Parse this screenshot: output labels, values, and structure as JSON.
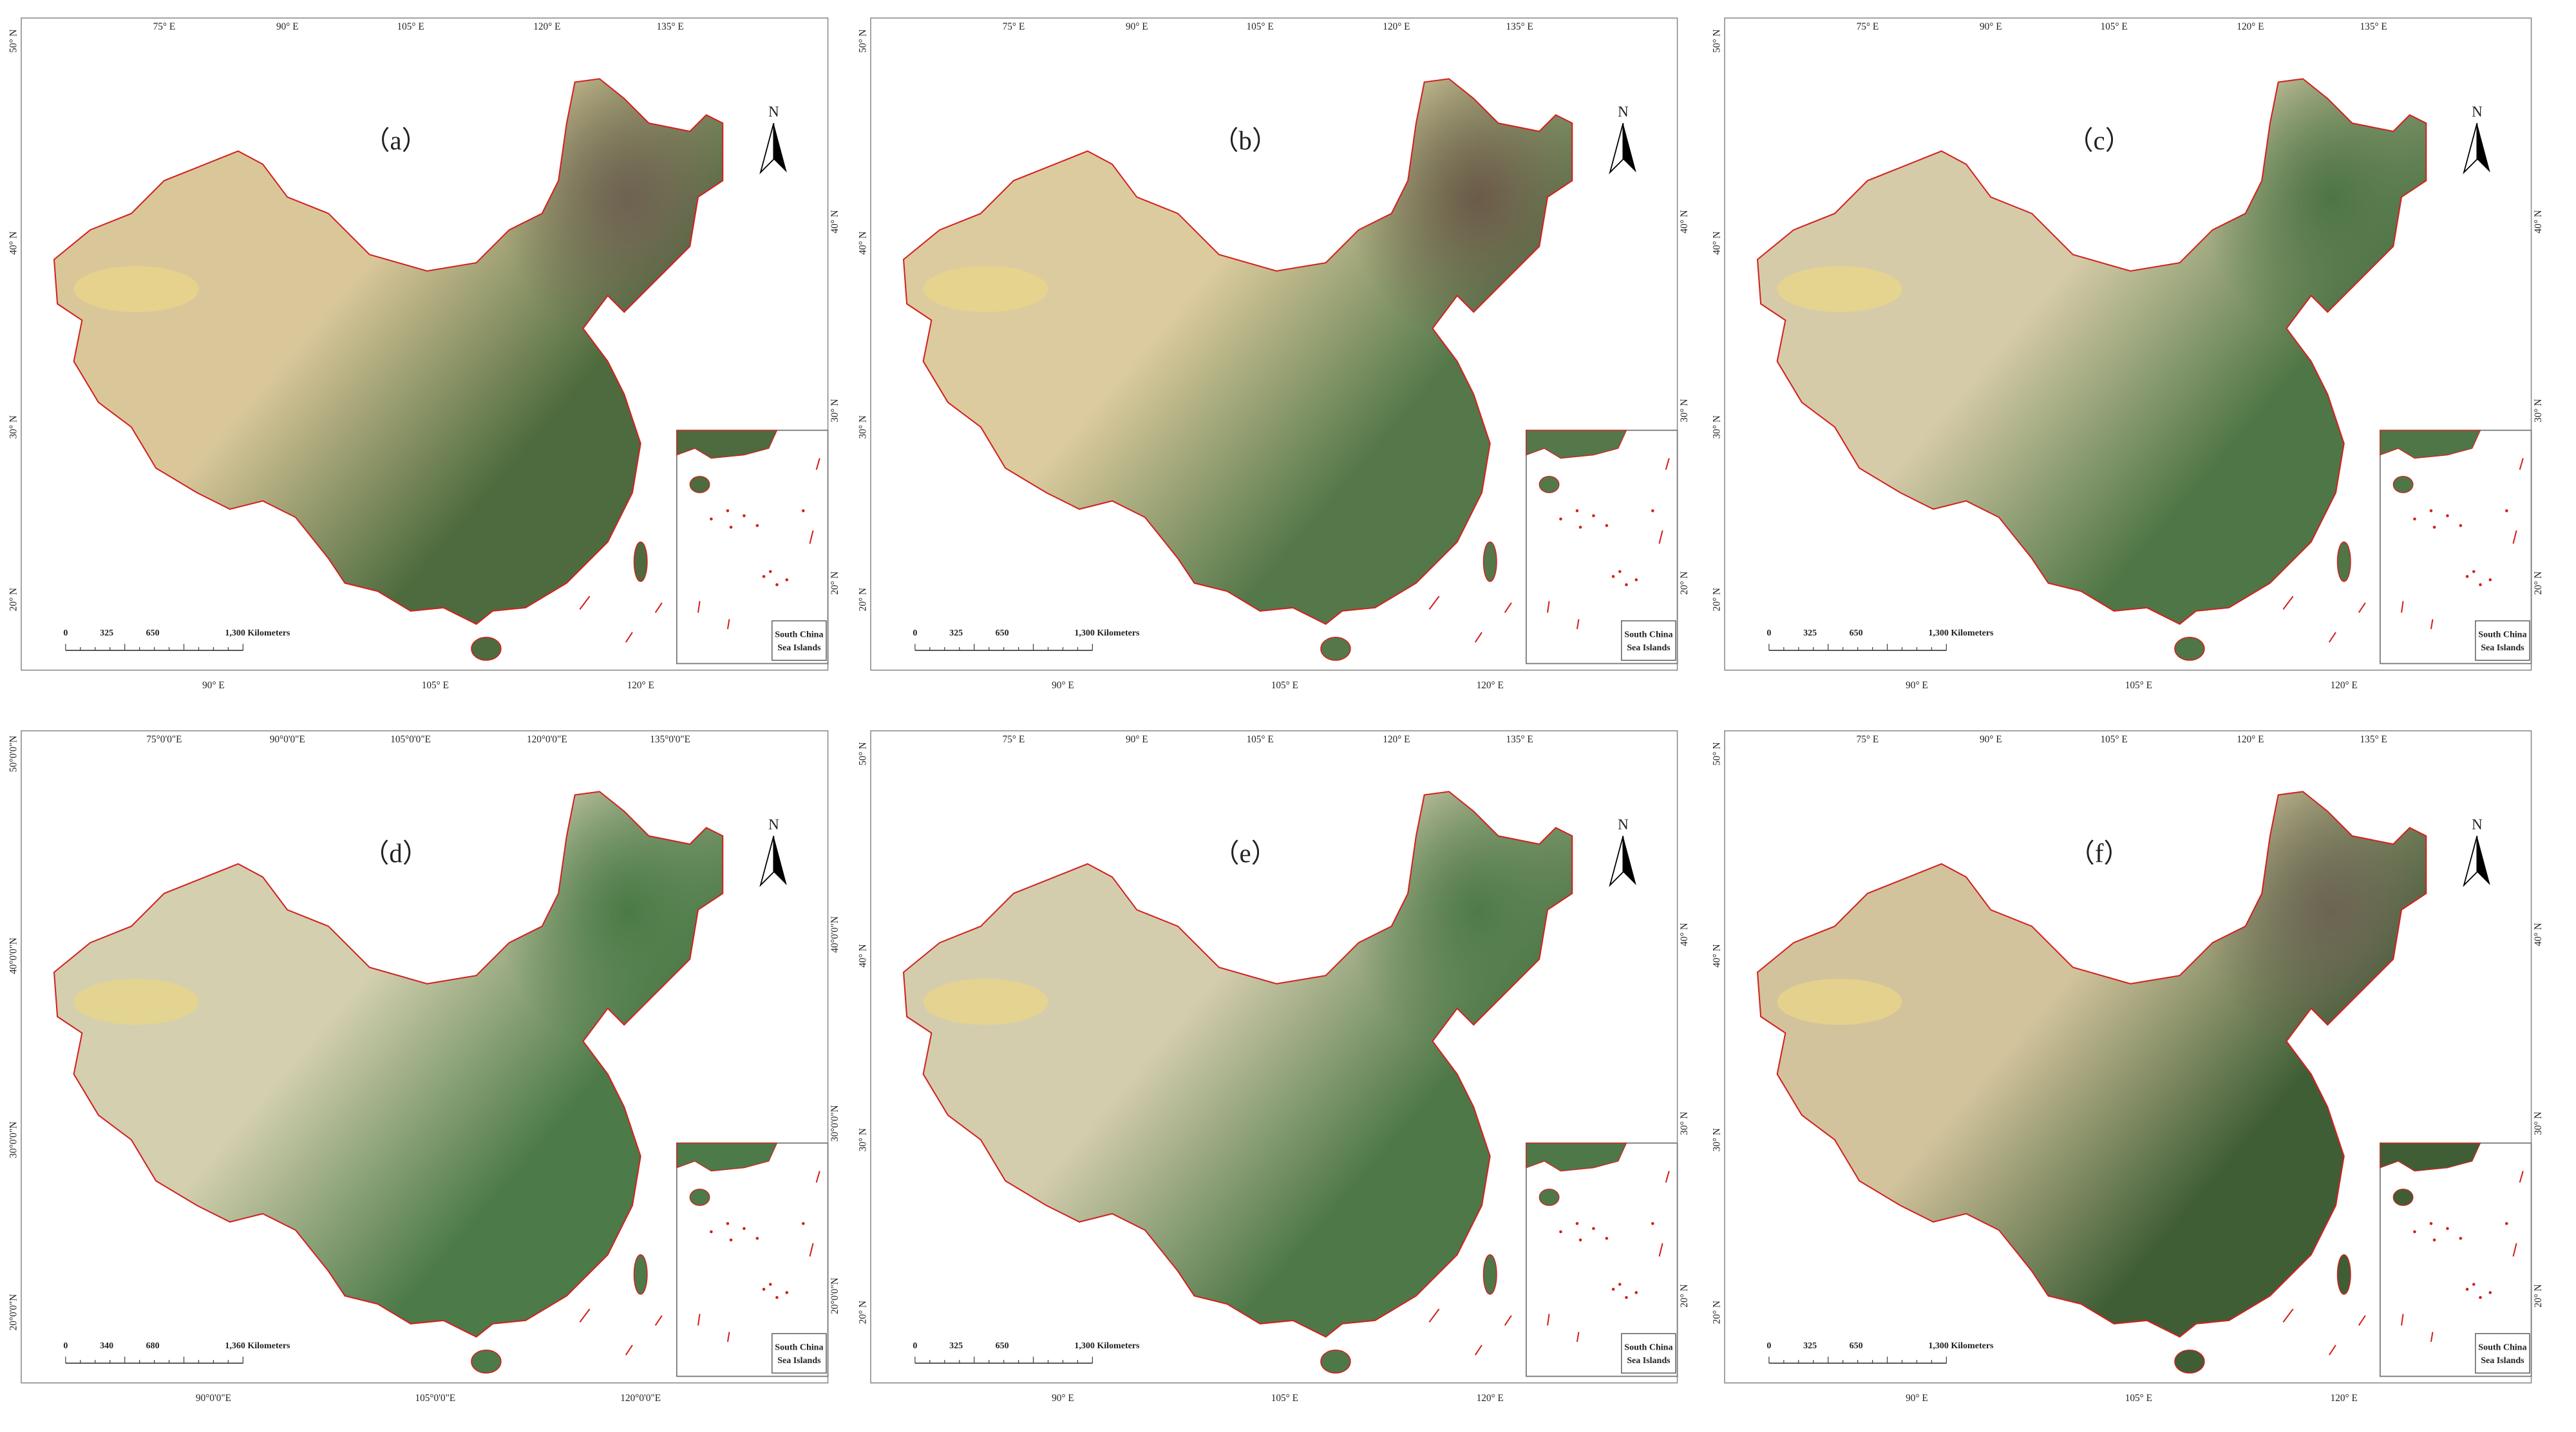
{
  "panels": [
    {
      "label": "（a）",
      "north": "N",
      "top_ticks": [
        "75° E",
        "90° E",
        "105° E",
        "120° E",
        "135° E"
      ],
      "bottom_ticks": [
        "90° E",
        "105° E",
        "120° E"
      ],
      "left_ticks": [
        "50° N",
        "40° N",
        "30° N",
        "20° N"
      ],
      "right_ticks": [
        "40° N",
        "30° N",
        "20° N"
      ],
      "scale_bar": [
        "0",
        "325",
        "650",
        "1,300 Kilometers"
      ],
      "inset_label": [
        "South China",
        "Sea Islands"
      ]
    },
    {
      "label": "（b）",
      "north": "N",
      "top_ticks": [
        "75° E",
        "90° E",
        "105° E",
        "120° E",
        "135° E"
      ],
      "bottom_ticks": [
        "90° E",
        "105° E",
        "120° E"
      ],
      "left_ticks": [
        "50° N",
        "40° N",
        "30° N",
        "20° N"
      ],
      "right_ticks": [
        "40° N",
        "30° N",
        "20° N"
      ],
      "scale_bar": [
        "0",
        "325",
        "650",
        "1,300 Kilometers"
      ],
      "inset_label": [
        "South China",
        "Sea Islands"
      ]
    },
    {
      "label": "（c）",
      "north": "N",
      "top_ticks": [
        "75° E",
        "90° E",
        "105° E",
        "120° E",
        "135° E"
      ],
      "bottom_ticks": [
        "90° E",
        "105° E",
        "120° E"
      ],
      "left_ticks": [
        "50° N",
        "40° N",
        "30° N",
        "20° N"
      ],
      "right_ticks": [
        "40° N",
        "30° N",
        "20° N"
      ],
      "scale_bar": [
        "0",
        "325",
        "650",
        "1,300 Kilometers"
      ],
      "inset_label": [
        "South China",
        "Sea Islands"
      ]
    },
    {
      "label": "（d）",
      "north": "N",
      "top_ticks": [
        "75°0'0\"E",
        "90°0'0\"E",
        "105°0'0\"E",
        "120°0'0\"E",
        "135°0'0\"E"
      ],
      "bottom_ticks": [
        "90°0'0\"E",
        "105°0'0\"E",
        "120°0'0\"E"
      ],
      "left_ticks": [
        "50°0'0\"N",
        "40°0'0\"N",
        "30°0'0\"N",
        "20°0'0\"N"
      ],
      "right_ticks": [
        "40°0'0\"N",
        "30°0'0\"N",
        "20°0'0\"N"
      ],
      "scale_bar": [
        "0",
        "340",
        "680",
        "1,360 Kilometers"
      ],
      "inset_label": [
        "South China",
        "Sea Islands"
      ]
    },
    {
      "label": "（e）",
      "north": "N",
      "top_ticks": [
        "75° E",
        "90° E",
        "105° E",
        "120° E",
        "135° E"
      ],
      "bottom_ticks": [
        "90° E",
        "105° E",
        "120° E"
      ],
      "left_ticks": [
        "50° N",
        "40° N",
        "30° N",
        "20° N"
      ],
      "right_ticks": [
        "40° N",
        "30° N",
        "20° N"
      ],
      "scale_bar": [
        "0",
        "325",
        "650",
        "1,300 Kilometers"
      ],
      "inset_label": [
        "South China",
        "Sea Islands"
      ]
    },
    {
      "label": "（f）",
      "north": "N",
      "top_ticks": [
        "75° E",
        "90° E",
        "105° E",
        "120° E",
        "135° E"
      ],
      "bottom_ticks": [
        "90° E",
        "105° E",
        "120° E"
      ],
      "left_ticks": [
        "50° N",
        "40° N",
        "30° N",
        "20° N"
      ],
      "right_ticks": [
        "40° N",
        "30° N",
        "20° N"
      ],
      "scale_bar": [
        "0",
        "325",
        "650",
        "1,300 Kilometers"
      ],
      "inset_label": [
        "South China",
        "Sea Islands"
      ]
    }
  ]
}
